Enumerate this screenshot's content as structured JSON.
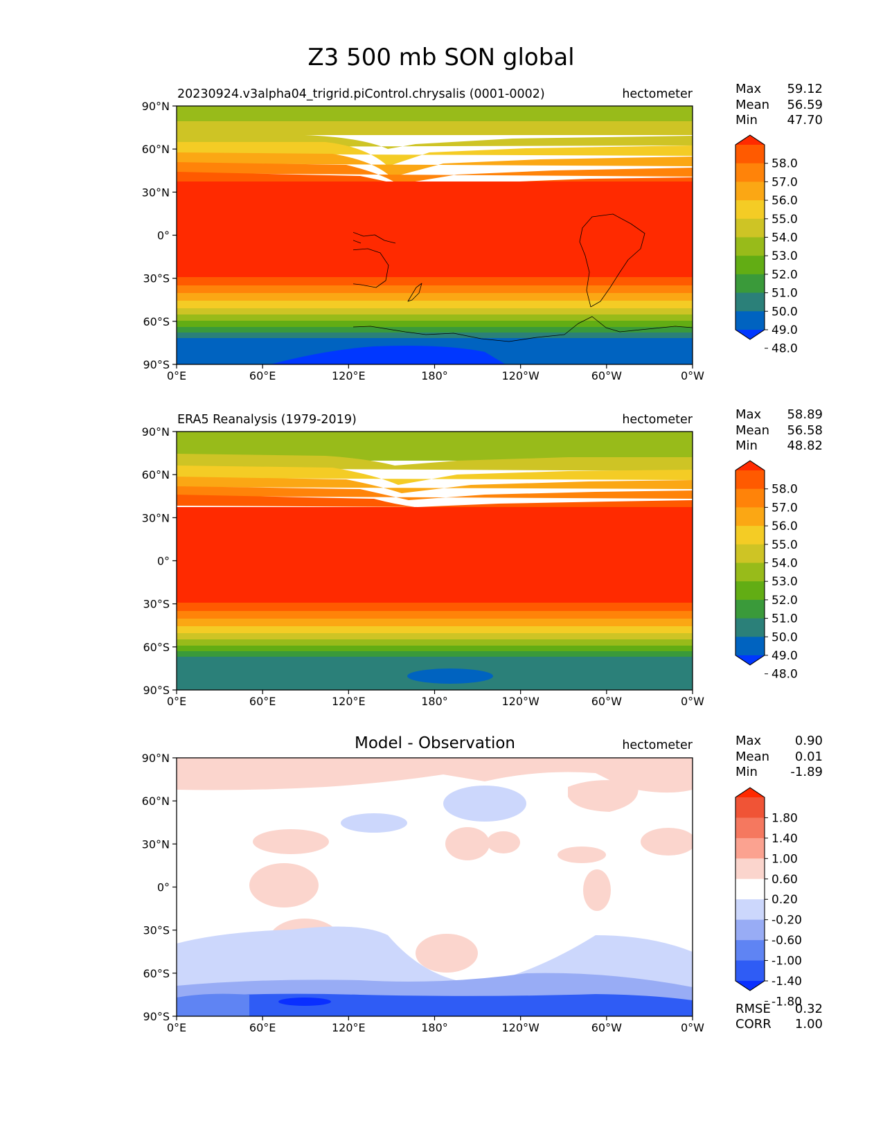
{
  "title": "Z3 500 mb SON global",
  "colors": {
    "levels": [
      "#0037ff",
      "#0063c0",
      "#2b8079",
      "#3a9a3a",
      "#62ad14",
      "#98bb1a",
      "#cec425",
      "#f4cc25",
      "#fba714",
      "#ff8309",
      "#ff5a00",
      "#ff2a00"
    ],
    "diff": [
      "#0a2fff",
      "#2f5cf5",
      "#5f84f3",
      "#98acf5",
      "#ccd7fc",
      "#ffffff",
      "#fbd5cd",
      "#fba290",
      "#f5785f",
      "#f05436",
      "#ff2a00"
    ],
    "coast": "#000000"
  },
  "x_ticks": [
    "0°E",
    "60°E",
    "120°E",
    "180°",
    "120°W",
    "60°W",
    "0°W"
  ],
  "y_ticks": [
    "90°N",
    "60°N",
    "30°N",
    "0°",
    "30°S",
    "60°S",
    "90°S"
  ],
  "stat_labels": {
    "max": "Max",
    "mean": "Mean",
    "min": "Min",
    "rmse": "RMSE",
    "corr": "CORR"
  },
  "panels": [
    {
      "id": "test",
      "left_title": "20230924.v3alpha04_trigrid.piControl.chrysalis (0001-0002)",
      "center_title": "",
      "units": "hectometer",
      "max": "59.12",
      "mean": "56.59",
      "min": "47.70",
      "cbar_labels": [
        "58.0",
        "57.0",
        "56.0",
        "55.0",
        "54.0",
        "53.0",
        "52.0",
        "51.0",
        "50.0",
        "49.0",
        "48.0"
      ]
    },
    {
      "id": "ref",
      "left_title": "ERA5 Reanalysis (1979-2019)",
      "center_title": "",
      "units": "hectometer",
      "max": "58.89",
      "mean": "56.58",
      "min": "48.82",
      "cbar_labels": [
        "58.0",
        "57.0",
        "56.0",
        "55.0",
        "54.0",
        "53.0",
        "52.0",
        "51.0",
        "50.0",
        "49.0",
        "48.0"
      ]
    },
    {
      "id": "diff",
      "left_title": "",
      "center_title": "Model - Observation",
      "units": "hectometer",
      "max": "0.90",
      "mean": "0.01",
      "min": "-1.89",
      "rmse": "0.32",
      "corr": "1.00",
      "cbar_labels": [
        "1.80",
        "1.40",
        "1.00",
        "0.60",
        "0.20",
        "-0.20",
        "-0.60",
        "-1.00",
        "-1.40",
        "-1.80"
      ]
    }
  ]
}
